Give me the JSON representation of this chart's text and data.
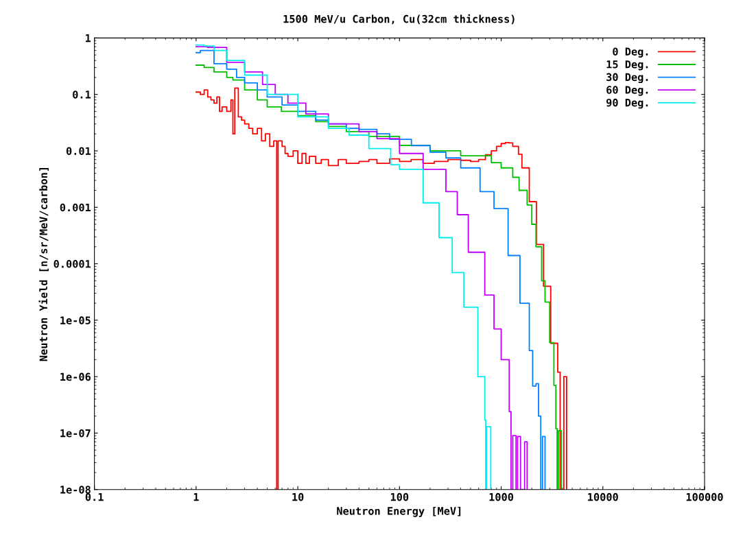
{
  "chart_data": {
    "type": "step",
    "title": "1500 MeV/u Carbon, Cu(32cm thickness)",
    "xlabel": "Neutron Energy [MeV]",
    "ylabel": "Neutron Yield [n/sr/MeV/carbon]",
    "log": "xy",
    "grid": false,
    "legend": "top right",
    "xlim": [
      0.1,
      100000
    ],
    "xticks": [
      0.1,
      1,
      10,
      100,
      1000,
      10000,
      100000
    ],
    "ylim": [
      1e-08,
      1
    ],
    "yticks": [
      {
        "value": 1e-08,
        "label": "1e-08"
      },
      {
        "value": 1e-07,
        "label": "1e-07"
      },
      {
        "value": 1e-06,
        "label": "1e-06"
      },
      {
        "value": 1e-05,
        "label": "1e-05"
      },
      0.0001,
      0.001,
      0.01,
      0.1,
      1
    ],
    "series": [
      {
        "name": "0 Deg.",
        "color": "#ff0000",
        "x": [
          1,
          1.1,
          1.2,
          1.3,
          1.4,
          1.5,
          1.6,
          1.7,
          1.8,
          2.0,
          2.2,
          2.3,
          2.4,
          2.6,
          2.8,
          3,
          3.3,
          3.6,
          4,
          4.4,
          4.8,
          5.3,
          5.8,
          6.2,
          6.4,
          7,
          7.5,
          8,
          9,
          10,
          11,
          12,
          13,
          15,
          17,
          20,
          25,
          30,
          40,
          50,
          60,
          80,
          100,
          130,
          170,
          220,
          300,
          400,
          500,
          600,
          700,
          800,
          900,
          1000,
          1100,
          1200,
          1300,
          1480,
          1600,
          1890,
          2220,
          2610,
          3070,
          3600,
          3800,
          4130,
          4400
        ],
        "values": [
          0.11,
          0.1,
          0.12,
          0.09,
          0.08,
          0.07,
          0.09,
          0.05,
          0.06,
          0.05,
          0.08,
          0.02,
          0.13,
          0.04,
          0.035,
          0.03,
          0.025,
          0.02,
          0.025,
          0.015,
          0.02,
          0.012,
          0.015,
          1e-08,
          0.015,
          0.012,
          0.009,
          0.008,
          0.01,
          0.006,
          0.009,
          0.006,
          0.008,
          0.006,
          0.007,
          0.0055,
          0.007,
          0.006,
          0.0065,
          0.007,
          0.006,
          0.0072,
          0.0065,
          0.007,
          0.006,
          0.0065,
          0.007,
          0.0068,
          0.0065,
          0.007,
          0.0085,
          0.01,
          0.012,
          0.0135,
          0.014,
          0.0138,
          0.012,
          0.0087,
          0.005,
          0.00126,
          0.00022,
          4e-05,
          3.9e-06,
          1.2e-06,
          1e-08,
          1e-06,
          1e-08
        ]
      },
      {
        "name": "15 Deg.",
        "color": "#00c000",
        "x": [
          1,
          1.2,
          1.5,
          2,
          2.3,
          3,
          4,
          5,
          6.9,
          10,
          15,
          20,
          30,
          50,
          100,
          200,
          400,
          800,
          1000,
          1300,
          1500,
          1800,
          2000,
          2200,
          2500,
          2700,
          3000,
          3300,
          3450,
          3550,
          3650,
          3900
        ],
        "values": [
          0.33,
          0.3,
          0.25,
          0.2,
          0.18,
          0.12,
          0.08,
          0.06,
          0.05,
          0.042,
          0.033,
          0.027,
          0.022,
          0.018,
          0.0125,
          0.01,
          0.0082,
          0.0062,
          0.005,
          0.0034,
          0.002,
          0.0011,
          0.0005,
          0.0002,
          5e-05,
          2.1e-05,
          4e-06,
          7e-07,
          1.2e-07,
          1e-08,
          1.1e-07,
          1e-08
        ]
      },
      {
        "name": "30 Deg.",
        "color": "#0080ff",
        "x": [
          1,
          1.1,
          1.5,
          2,
          2.5,
          3,
          4,
          5,
          7,
          10,
          15,
          20,
          30,
          40,
          60,
          80,
          131,
          200,
          286,
          400,
          620,
          850,
          1170,
          1530,
          1890,
          2040,
          2200,
          2330,
          2450,
          2550,
          2700
        ],
        "values": [
          0.55,
          0.6,
          0.35,
          0.28,
          0.2,
          0.16,
          0.12,
          0.09,
          0.065,
          0.05,
          0.035,
          0.03,
          0.025,
          0.024,
          0.02,
          0.016,
          0.0124,
          0.0095,
          0.0075,
          0.005,
          0.0019,
          0.00095,
          0.00014,
          2e-05,
          2.9e-06,
          6.8e-07,
          7.5e-07,
          2e-07,
          1e-08,
          8.7e-08,
          1e-08
        ]
      },
      {
        "name": "60 Deg.",
        "color": "#c000ff",
        "x": [
          1,
          1.3,
          2,
          3,
          4.5,
          6,
          8,
          12,
          20,
          40,
          60,
          100,
          171,
          286,
          370,
          475,
          690,
          850,
          1000,
          1200,
          1250,
          1300,
          1400,
          1450,
          1550,
          1700,
          1800
        ],
        "values": [
          0.7,
          0.68,
          0.37,
          0.25,
          0.15,
          0.1,
          0.07,
          0.045,
          0.03,
          0.022,
          0.0165,
          0.009,
          0.0047,
          0.0019,
          0.00074,
          0.00016,
          2.8e-05,
          7e-06,
          2e-06,
          2.4e-07,
          1e-08,
          9e-08,
          1e-08,
          8.7e-08,
          1e-08,
          7e-08,
          1e-08
        ]
      },
      {
        "name": "90 Deg.",
        "color": "#00eeee",
        "x": [
          1,
          1.2,
          1.5,
          2,
          3,
          5,
          10,
          20,
          32,
          50,
          82,
          100,
          171,
          245,
          330,
          430,
          590,
          690,
          705,
          720,
          790
        ],
        "values": [
          0.75,
          0.72,
          0.6,
          0.4,
          0.22,
          0.1,
          0.04,
          0.025,
          0.019,
          0.011,
          0.0057,
          0.0047,
          0.0012,
          0.00029,
          7e-05,
          1.7e-05,
          1e-06,
          1.7e-07,
          1e-08,
          1.3e-07,
          1e-08
        ]
      }
    ]
  }
}
